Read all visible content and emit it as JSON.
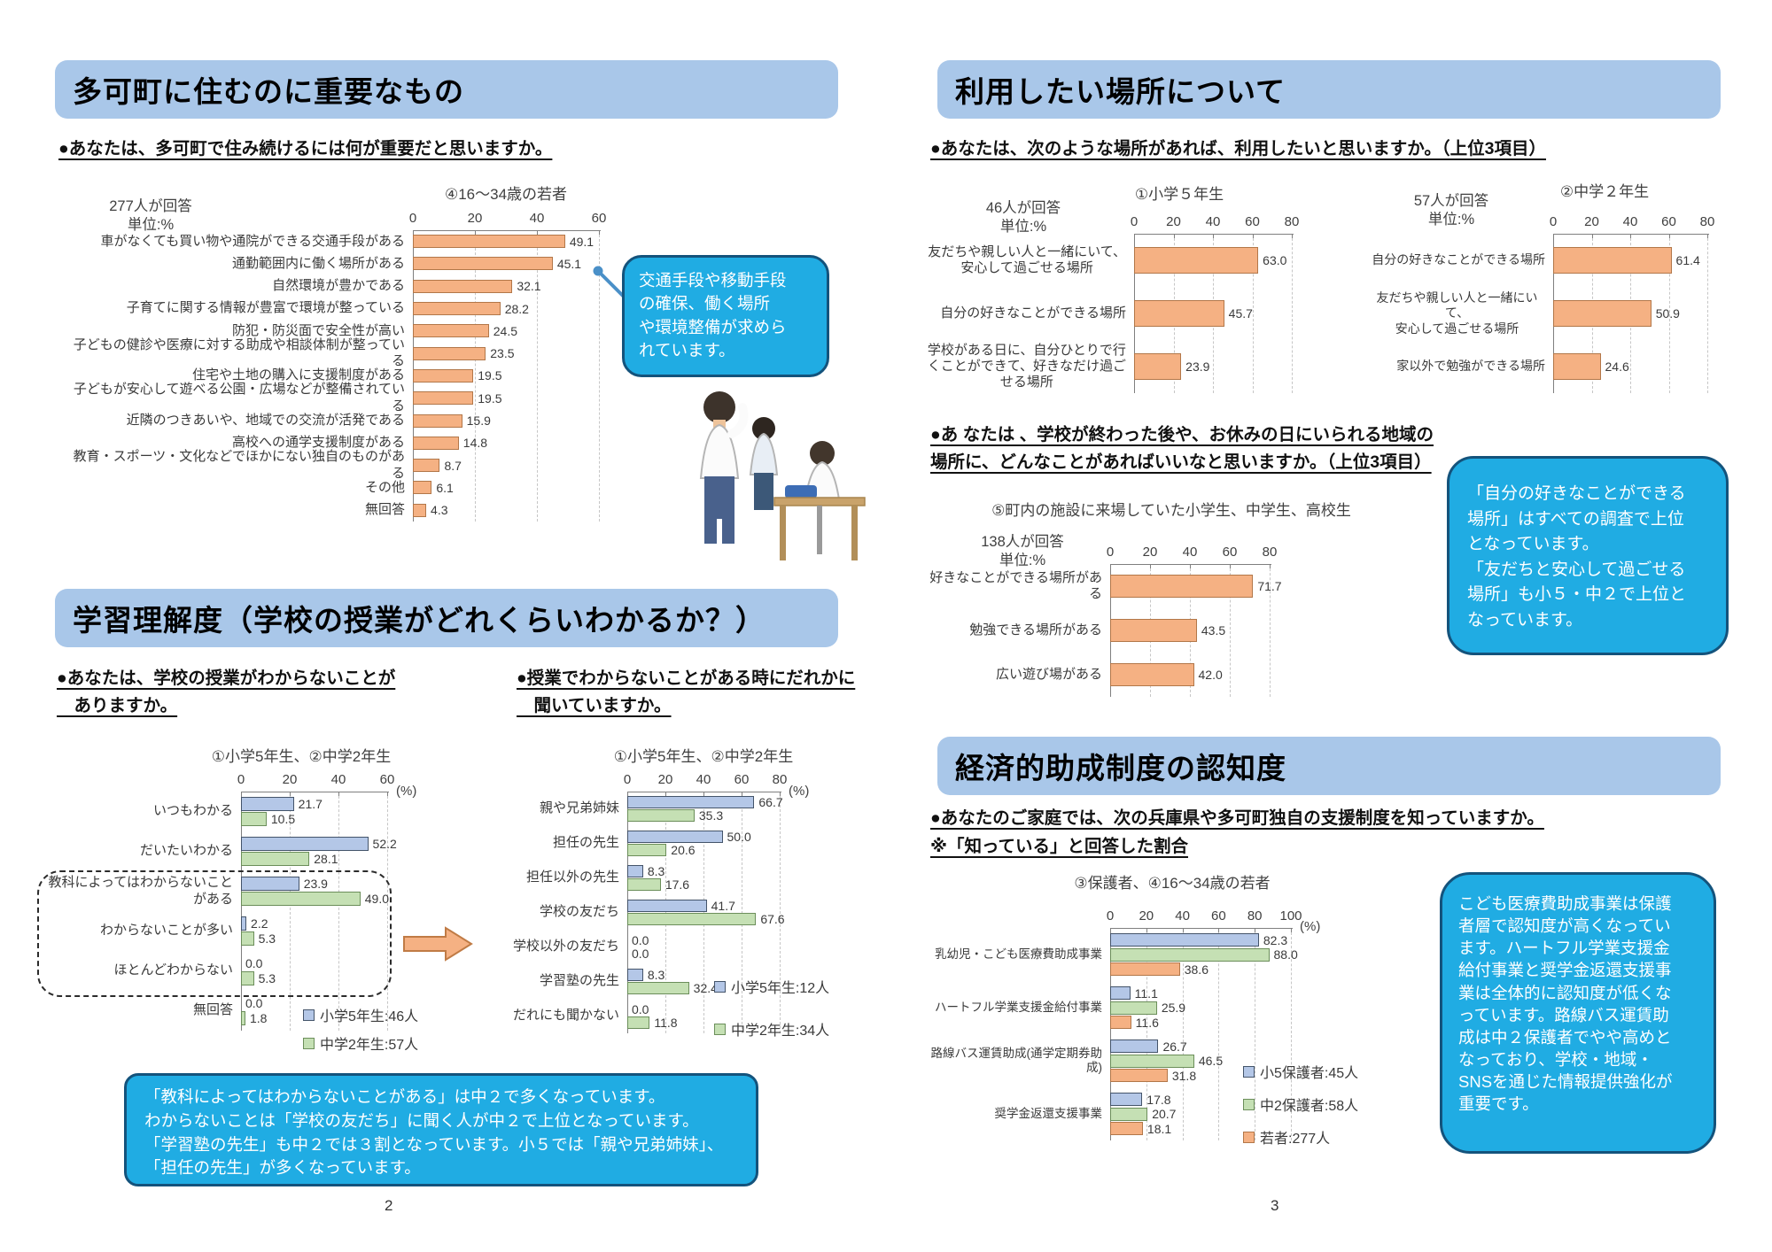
{
  "colors": {
    "header_bg": "#a9c7e9",
    "callout_bg": "#20ace3",
    "callout_border": "#14537c",
    "bar_orange": "#f5b183",
    "bar_orange_border": "#b27749",
    "bar_blue": "#b4c7e7",
    "bar_blue_border": "#44546a",
    "bar_green": "#c5e0b4",
    "bar_green_border": "#6b8e5a"
  },
  "page2": {
    "page_number": "2",
    "section_important": {
      "header": "多可町に住むのに重要なもの",
      "question": "●あなたは、多可町で住み続けるには何が重要だと思いますか。",
      "callout": "交通手段や移動手段\nの確保、働く場所\nや環境整備が求めら\nれています。"
    },
    "section_learning": {
      "header": "学習理解度（学校の授業がどれくらいわかるか？）",
      "question_left": "●あなたは、学校の授業がわからないことが\n　ありますか。",
      "question_right": "●授業でわからないことがある時にだれかに\n　聞いていますか。",
      "callout": "「教科によってはわからないことがある」は中２で多くなっています。\nわからないことは「学校の友だち」に聞く人が中２で上位となっています。\n「学習塾の先生」も中２では３割となっています。小５では「親や兄弟姉妹」、\n「担任の先生」が多くなっています。"
    }
  },
  "page3": {
    "page_number": "3",
    "section_places": {
      "header": "利用したい場所について",
      "question1": "●あなたは、次のような場所があれば、利用したいと思いますか。（上位3項目）",
      "question2": "●あ なたは 、学校が終わった後や、お休みの日にいられる地域の\n場所に、どんなことがあればいいなと思いますか。（上位3項目）",
      "callout": "「自分の好きなことができる\n場所」はすべての調査で上位\nとなっています。\n「友だちと安心して過ごせる\n場所」も小５・中２で上位と\nなっています。"
    },
    "section_subsidy": {
      "header": "経済的助成制度の認知度",
      "question": "●あなたのご家庭では、次の兵庫県や多可町独自の支援制度を知っていますか。",
      "note": "※「知っている」と回答した割合",
      "callout": "こども医療費助成事業は保護\n者層で認知度が高くなってい\nます。ハートフル学業支援金\n給付事業と奨学金返還支援事\n業は全体的に認知度が低くな\nっています。路線バス運賃助\n成は中２保護者でやや高めと\nなっており、学校・地域・\nSNSを通じた情報提供強化が\n重要です。"
    }
  },
  "chart_data": [
    {
      "id": "important",
      "type": "bar",
      "orientation": "horizontal",
      "title": "④16〜34歳の若者",
      "respondents": "277人が回答\n単位:%",
      "xlim": [
        0,
        60
      ],
      "ticks": [
        0,
        20,
        40,
        60
      ],
      "grid": true,
      "categories": [
        "車がなくても買い物や通院ができる交通手段がある",
        "通勤範囲内に働く場所がある",
        "自然環境が豊かである",
        "子育てに関する情報が豊富で環境が整っている",
        "防犯・防災面で安全性が高い",
        "子どもの健診や医療に対する助成や相談体制が整っている",
        "住宅や土地の購入に支援制度がある",
        "子どもが安心して遊べる公園・広場などが整備されている",
        "近隣のつきあいや、地域での交流が活発である",
        "高校への通学支援制度がある",
        "教育・スポーツ・文化などでほかにない独自のものがある",
        "その他",
        "無回答"
      ],
      "series": [
        {
          "name": "16〜34歳の若者",
          "color": "orange",
          "values": [
            49.1,
            45.1,
            32.1,
            28.2,
            24.5,
            23.5,
            19.5,
            19.5,
            15.9,
            14.8,
            8.7,
            6.1,
            4.3
          ]
        }
      ]
    },
    {
      "id": "understanding",
      "type": "bar",
      "orientation": "horizontal",
      "title": "①小学5年生、②中学2年生",
      "unit": "(%)",
      "xlim": [
        0,
        60
      ],
      "ticks": [
        0,
        20,
        40,
        60
      ],
      "grid": true,
      "legend_position": "inside-bottom-right",
      "categories": [
        "いつもわかる",
        "だいたいわかる",
        "教科によってはわからないこと\nがある",
        "わからないことが多い",
        "ほとんどわからない",
        "無回答"
      ],
      "series": [
        {
          "name": "小学5年生:46人",
          "color": "blue",
          "values": [
            21.7,
            52.2,
            23.9,
            2.2,
            0.0,
            0.0
          ]
        },
        {
          "name": "中学2年生:57人",
          "color": "green",
          "values": [
            10.5,
            28.1,
            49.0,
            5.3,
            5.3,
            1.8
          ]
        }
      ]
    },
    {
      "id": "who_to_ask",
      "type": "bar",
      "orientation": "horizontal",
      "title": "①小学5年生、②中学2年生",
      "unit": "(%)",
      "xlim": [
        0,
        80
      ],
      "ticks": [
        0,
        20,
        40,
        60,
        80
      ],
      "grid": true,
      "legend_position": "inside-bottom-right",
      "categories": [
        "親や兄弟姉妹",
        "担任の先生",
        "担任以外の先生",
        "学校の友だち",
        "学校以外の友だち",
        "学習塾の先生",
        "だれにも聞かない"
      ],
      "series": [
        {
          "name": "小学5年生:12人",
          "color": "blue",
          "values": [
            66.7,
            50.0,
            8.3,
            41.7,
            0.0,
            8.3,
            0.0
          ]
        },
        {
          "name": "中学2年生:34人",
          "color": "green",
          "values": [
            35.3,
            20.6,
            17.6,
            67.6,
            0.0,
            32.4,
            11.8
          ]
        }
      ]
    },
    {
      "id": "place_elem",
      "type": "bar",
      "orientation": "horizontal",
      "title": "①小学５年生",
      "respondents": "46人が回答\n単位:%",
      "xlim": [
        0,
        80
      ],
      "ticks": [
        0,
        20,
        40,
        60,
        80
      ],
      "grid": true,
      "categories": [
        "友だちや親しい人と一緒にいて、\n安心して過ごせる場所",
        "自分の好きなことができる場所",
        "学校がある日に、自分ひとりで行\nくことができて、好きなだけ過ご\nせる場所"
      ],
      "series": [
        {
          "name": "小学5年生",
          "color": "orange",
          "values": [
            63.0,
            45.7,
            23.9
          ]
        }
      ]
    },
    {
      "id": "place_junior",
      "type": "bar",
      "orientation": "horizontal",
      "title": "②中学２年生",
      "respondents": "57人が回答\n単位:%",
      "xlim": [
        0,
        80
      ],
      "ticks": [
        0,
        20,
        40,
        60,
        80
      ],
      "grid": true,
      "categories": [
        "自分の好きなことができる場所",
        "友だちや親しい人と一緒にいて、\n安心して過ごせる場所",
        "家以外で勉強ができる場所"
      ],
      "series": [
        {
          "name": "中学2年生",
          "color": "orange",
          "values": [
            61.4,
            50.9,
            24.6
          ]
        }
      ]
    },
    {
      "id": "facility",
      "type": "bar",
      "orientation": "horizontal",
      "title": "⑤町内の施設に来場していた小学生、中学生、高校生",
      "respondents": "138人が回答\n単位:%",
      "xlim": [
        0,
        80
      ],
      "ticks": [
        0,
        20,
        40,
        60,
        80
      ],
      "grid": true,
      "categories": [
        "好きなことができる場所がある",
        "勉強できる場所がある",
        "広い遊び場がある"
      ],
      "series": [
        {
          "name": "小中高生",
          "color": "orange",
          "values": [
            71.7,
            43.5,
            42.0
          ]
        }
      ]
    },
    {
      "id": "subsidy",
      "type": "bar",
      "orientation": "horizontal",
      "title": "③保護者、④16〜34歳の若者",
      "unit": "(%)",
      "xlim": [
        0,
        100
      ],
      "ticks": [
        0,
        20,
        40,
        60,
        80,
        100
      ],
      "grid": true,
      "legend_position": "inside-bottom-right",
      "categories": [
        "乳幼児・こども医療費助成事業",
        "ハートフル学業支援金給付事業",
        "路線バス運賃助成(通学定期券助成)",
        "奨学金返還支援事業"
      ],
      "series": [
        {
          "name": "小5保護者:45人",
          "color": "blue",
          "values": [
            82.3,
            11.1,
            26.7,
            17.8
          ]
        },
        {
          "name": "中2保護者:58人",
          "color": "green",
          "values": [
            88.0,
            25.9,
            46.5,
            20.7
          ]
        },
        {
          "name": "若者:277人",
          "color": "orange",
          "values": [
            38.6,
            11.6,
            31.8,
            18.1
          ]
        }
      ]
    }
  ]
}
